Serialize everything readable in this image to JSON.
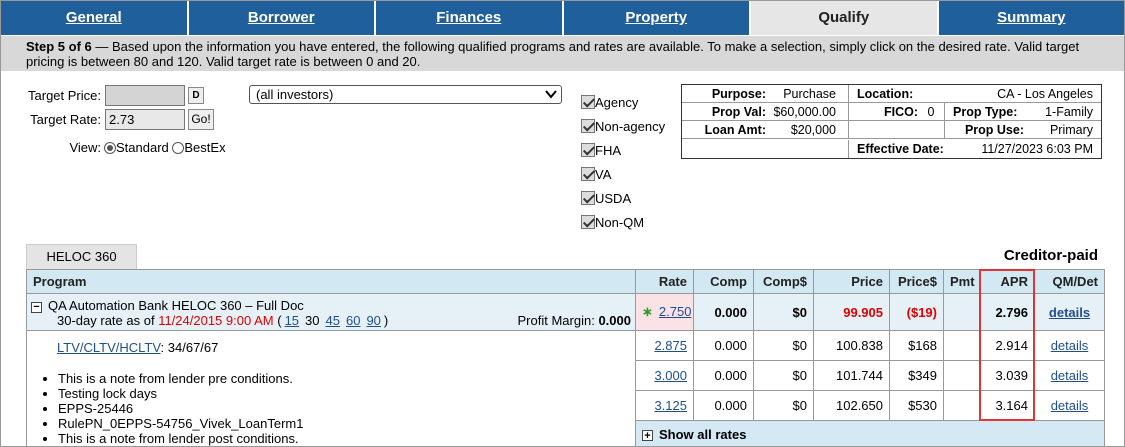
{
  "tabs": [
    "General",
    "Borrower",
    "Finances",
    "Property",
    "Qualify",
    "Summary"
  ],
  "active_tab": "Qualify",
  "step": {
    "label": "Step 5 of 6",
    "text": "— Based upon the information you have entered, the following qualified programs and rates are available. To make a selection, simply click on the desired rate. Valid target pricing is between 80 and 120. Valid target rate is between 0 and 20."
  },
  "form": {
    "target_price_label": "Target Price:",
    "target_price": "",
    "target_price_button": "D",
    "target_rate_label": "Target Rate:",
    "target_rate": "2.73",
    "go_button": "Go!",
    "view_label": "View:",
    "view_options": [
      "Standard",
      "BestEx"
    ],
    "view_selected": "Standard",
    "investor_select": "(all investors)"
  },
  "filters": [
    "Agency",
    "Non-agency",
    "FHA",
    "VA",
    "USDA",
    "Non-QM"
  ],
  "loan_info": {
    "purpose_label": "Purpose:",
    "purpose": "Purchase",
    "location_label": "Location:",
    "location": "CA - Los Angeles",
    "prop_val_label": "Prop Val:",
    "prop_val": "$60,000.00",
    "fico_label": "FICO:",
    "fico": "0",
    "prop_type_label": "Prop Type:",
    "prop_type": "1-Family",
    "loan_amt_label": "Loan Amt:",
    "loan_amt": "$20,000",
    "prop_use_label": "Prop Use:",
    "prop_use": "Primary",
    "effective_date_label": "Effective Date:",
    "effective_date": "11/27/2023 6:03 PM"
  },
  "product_tab": "HELOC 360",
  "compensation": "Creditor-paid",
  "table": {
    "columns": [
      "Program",
      "Rate",
      "Comp",
      "Comp$",
      "Price",
      "Price$",
      "Pmt",
      "APR",
      "QM/Det"
    ],
    "program": {
      "name": "QA Automation Bank HELOC 360 – Full Doc",
      "rate_as_of_label": "30-day rate as of",
      "rate_date": "11/24/2015 9:00 AM",
      "lock_days": [
        "15",
        "30",
        "45",
        "60",
        "90"
      ],
      "profit_margin_label": "Profit Margin:",
      "profit_margin": "0.000",
      "ltv_label": "LTV/CLTV/HCLTV",
      "ltv_value": ": 34/67/67",
      "notes": [
        "This is a note from lender pre conditions.",
        "Testing lock days",
        "EPPS-25446",
        "RulePN_0EPPS-54756_Vivek_LoanTerm1",
        "This is a note from lender post conditions."
      ]
    },
    "rows": [
      [
        "2.750",
        "0.000",
        "$0",
        "99.905",
        "($19)",
        "",
        "2.796",
        "details"
      ],
      [
        "2.875",
        "0.000",
        "$0",
        "100.838",
        "$168",
        "",
        "2.914",
        "details"
      ],
      [
        "3.000",
        "0.000",
        "$0",
        "101.744",
        "$349",
        "",
        "3.039",
        "details"
      ],
      [
        "3.125",
        "0.000",
        "$0",
        "102.650",
        "$530",
        "",
        "3.164",
        "details"
      ]
    ],
    "show_all": "Show all rates"
  }
}
